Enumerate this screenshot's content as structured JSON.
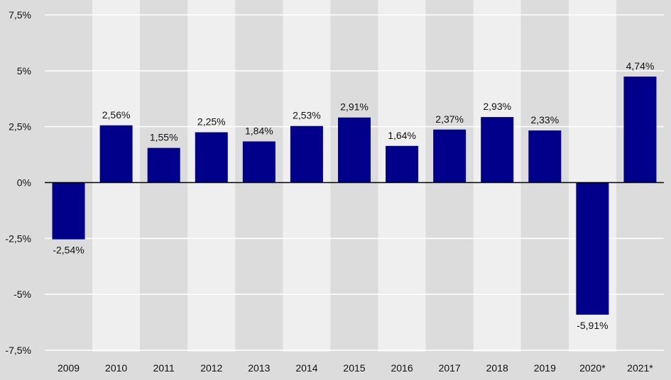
{
  "chart_data": {
    "type": "bar",
    "categories": [
      "2009",
      "2010",
      "2011",
      "2012",
      "2013",
      "2014",
      "2015",
      "2016",
      "2017",
      "2018",
      "2019",
      "2020*",
      "2021*"
    ],
    "values": [
      -2.54,
      2.56,
      1.55,
      2.25,
      1.84,
      2.53,
      2.91,
      1.64,
      2.37,
      2.93,
      2.33,
      -5.91,
      4.74
    ],
    "data_labels": [
      "-2,54%",
      "2,56%",
      "1,55%",
      "2,25%",
      "1,84%",
      "2,53%",
      "2,91%",
      "1,64%",
      "2,37%",
      "2,93%",
      "2,33%",
      "-5,91%",
      "4,74%"
    ],
    "y_ticks": [
      {
        "value": 7.5,
        "label": "7,5%"
      },
      {
        "value": 5,
        "label": "5%"
      },
      {
        "value": 2.5,
        "label": "2,5%"
      },
      {
        "value": 0,
        "label": "0%"
      },
      {
        "value": -2.5,
        "label": "-2,5%"
      },
      {
        "value": -5,
        "label": "-5%"
      },
      {
        "value": -7.5,
        "label": "-7,5%"
      }
    ],
    "ylim": [
      -7.5,
      7.5
    ],
    "title": "",
    "xlabel": "",
    "ylabel": "",
    "grid": true,
    "colors": {
      "bar": "#00008b",
      "band_light": "#efefef",
      "band_dark": "#dcdcdc",
      "grid": "#ffffff",
      "zero_line": "#000000",
      "text": "#111111"
    }
  }
}
